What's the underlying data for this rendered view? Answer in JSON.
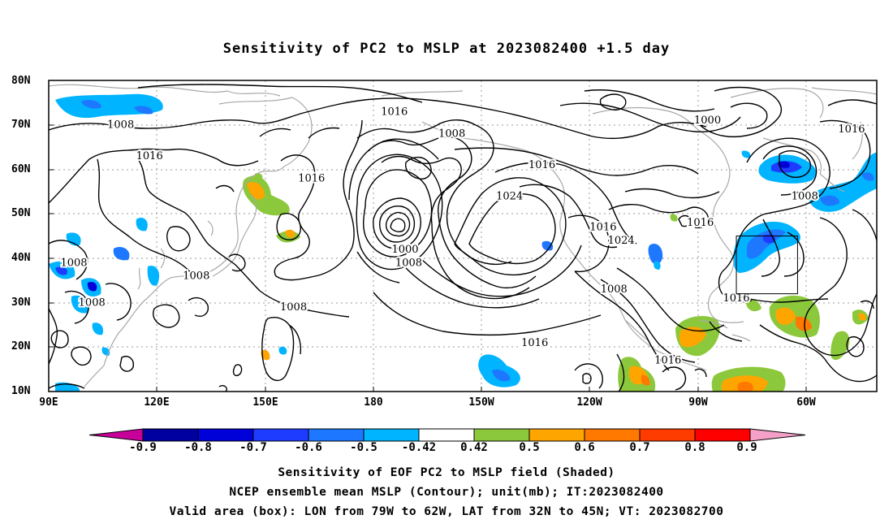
{
  "title": "Sensitivity of PC2 to MSLP at 2023082400 +1.5 day",
  "lat_ticks": [
    "80N",
    "70N",
    "60N",
    "50N",
    "40N",
    "30N",
    "20N",
    "10N"
  ],
  "lon_ticks": [
    "90E",
    "120E",
    "150E",
    "180",
    "150W",
    "120W",
    "90W",
    "60W"
  ],
  "contour_labels": [
    {
      "text": "1016",
      "lon": -174,
      "lat": 73,
      "id": "contour-label-1016-a"
    },
    {
      "text": "1008",
      "lon": 110,
      "lat": 70,
      "id": "contour-label-1008-a"
    },
    {
      "text": "1016",
      "lon": 118,
      "lat": 63,
      "id": "contour-label-1016-b"
    },
    {
      "text": "1016",
      "lon": 163,
      "lat": 58,
      "id": "contour-label-1016-c"
    },
    {
      "text": "1008",
      "lon": -158,
      "lat": 68,
      "id": "contour-label-1008-b"
    },
    {
      "text": "1016",
      "lon": -133,
      "lat": 61,
      "id": "contour-label-1016-d"
    },
    {
      "text": "1024",
      "lon": -142,
      "lat": 54,
      "id": "contour-label-1024-a"
    },
    {
      "text": "1000",
      "lon": -87,
      "lat": 71,
      "id": "contour-label-1000-a"
    },
    {
      "text": "1016",
      "lon": -47,
      "lat": 69,
      "id": "contour-label-1016-e"
    },
    {
      "text": "1008",
      "lon": -60,
      "lat": 54,
      "id": "contour-label-1008-c"
    },
    {
      "text": "1016",
      "lon": -89,
      "lat": 48,
      "id": "contour-label-1016-f"
    },
    {
      "text": "1016",
      "lon": -116,
      "lat": 47,
      "id": "contour-label-1016-g"
    },
    {
      "text": "1024",
      "lon": -111,
      "lat": 44,
      "id": "contour-label-1024-b"
    },
    {
      "text": "1000",
      "lon": -171,
      "lat": 42,
      "id": "contour-label-1000-b"
    },
    {
      "text": "1008",
      "lon": -170,
      "lat": 39,
      "id": "contour-label-1008-d"
    },
    {
      "text": "1008",
      "lon": 97,
      "lat": 39,
      "id": "contour-label-1008-e"
    },
    {
      "text": "1008",
      "lon": 131,
      "lat": 36,
      "id": "contour-label-1008-f"
    },
    {
      "text": "1008",
      "lon": 102,
      "lat": 30,
      "id": "contour-label-1008-g"
    },
    {
      "text": "1008",
      "lon": 158,
      "lat": 29,
      "id": "contour-label-1008-h"
    },
    {
      "text": "1008",
      "lon": -113,
      "lat": 33,
      "id": "contour-label-1008-i"
    },
    {
      "text": "1016",
      "lon": -135,
      "lat": 21,
      "id": "contour-label-1016-h"
    },
    {
      "text": "1016",
      "lon": -98,
      "lat": 17,
      "id": "contour-label-1016-i"
    },
    {
      "text": "1016",
      "lon": -79,
      "lat": 31,
      "id": "contour-label-1016-j"
    }
  ],
  "valid_box": {
    "lon_min": -79,
    "lon_max": -62,
    "lat_min": 32,
    "lat_max": 45
  },
  "colorbar": {
    "labels": [
      "-0.9",
      "-0.8",
      "-0.7",
      "-0.6",
      "-0.5",
      "-0.42",
      "0.42",
      "0.5",
      "0.6",
      "0.7",
      "0.8",
      "0.9"
    ],
    "colors": {
      "low_triangle": "#c8009a",
      "bins": [
        "#0000a0",
        "#0000d8",
        "#1e3cff",
        "#1e78ff",
        "#00b4ff",
        "#ffffff",
        "#8cc83c",
        "#ffa500",
        "#ff7800",
        "#ff3c00",
        "#ff0000"
      ],
      "high_triangle": "#f5a0c8"
    }
  },
  "footer": [
    "Sensitivity of EOF PC2 to MSLP field (Shaded)",
    "NCEP ensemble mean MSLP (Contour); unit(mb); IT:2023082400",
    "Valid area (box): LON from 79W to 62W, LAT from 32N to 45N; VT: 2023082700"
  ]
}
